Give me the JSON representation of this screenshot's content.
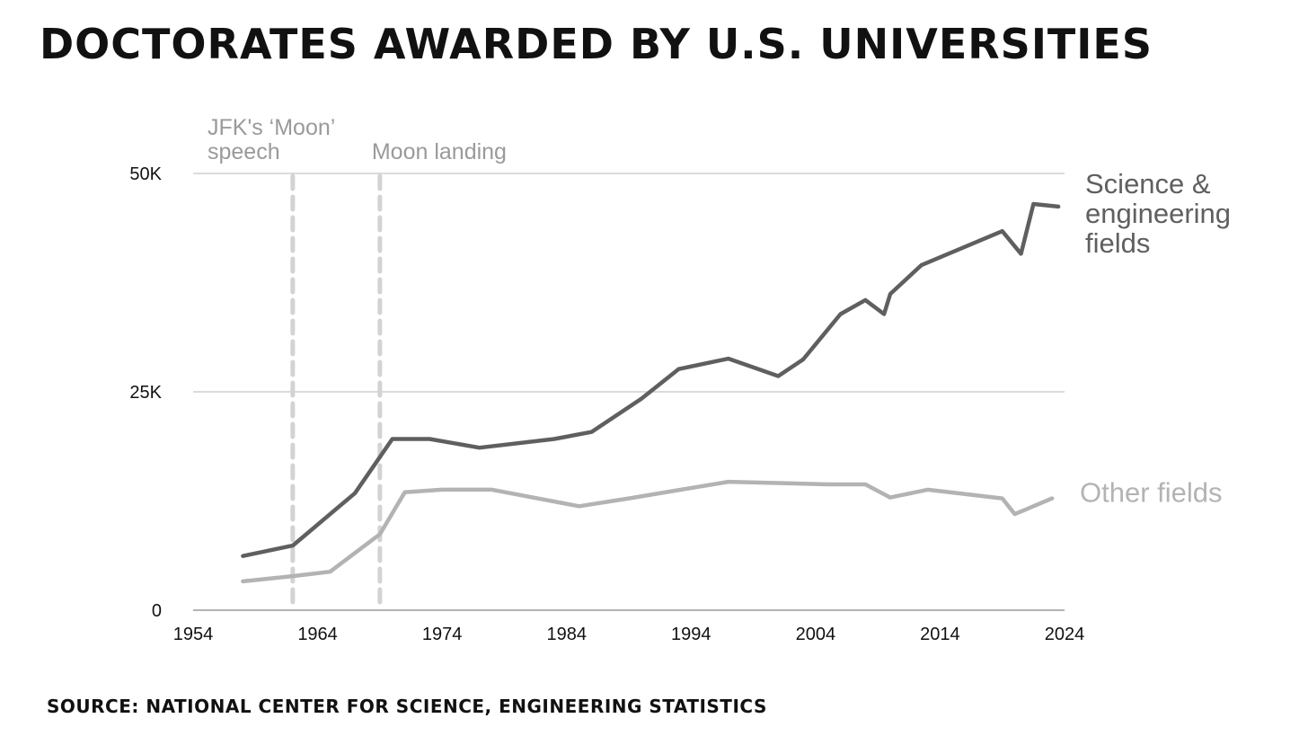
{
  "title": "DOCTORATES AWARDED BY U.S. UNIVERSITIES",
  "source": "SOURCE: NATIONAL CENTER FOR SCIENCE, ENGINEERING STATISTICS",
  "chart_data": {
    "type": "line",
    "title": "DOCTORATES AWARDED BY U.S. UNIVERSITIES",
    "xlabel": "",
    "ylabel": "",
    "xlim": [
      1954,
      2024
    ],
    "ylim": [
      0,
      50000
    ],
    "grid": true,
    "x_ticks": [
      {
        "value": 1954,
        "label": "1954"
      },
      {
        "value": 1964,
        "label": "1964"
      },
      {
        "value": 1974,
        "label": "1974"
      },
      {
        "value": 1984,
        "label": "1984"
      },
      {
        "value": 1994,
        "label": "1994"
      },
      {
        "value": 2004,
        "label": "2004"
      },
      {
        "value": 2014,
        "label": "2014"
      },
      {
        "value": 2024,
        "label": "2024"
      }
    ],
    "y_ticks": [
      {
        "value": 0,
        "label": "0"
      },
      {
        "value": 25000,
        "label": "25K"
      },
      {
        "value": 50000,
        "label": "50K"
      }
    ],
    "series": [
      {
        "name": "Science & engineering fields",
        "label_lines": [
          "Science &",
          "engineering",
          "fields"
        ],
        "color": "#5f5f5f",
        "points": [
          [
            1958,
            6200
          ],
          [
            1962,
            7400
          ],
          [
            1967,
            13400
          ],
          [
            1970,
            19600
          ],
          [
            1973,
            19600
          ],
          [
            1977,
            18600
          ],
          [
            1983,
            19600
          ],
          [
            1986,
            20400
          ],
          [
            1990,
            24200
          ],
          [
            1993,
            27600
          ],
          [
            1997,
            28800
          ],
          [
            2001,
            26800
          ],
          [
            2003,
            28700
          ],
          [
            2006,
            33900
          ],
          [
            2008,
            35500
          ],
          [
            2009.5,
            33900
          ],
          [
            2010,
            36200
          ],
          [
            2012.5,
            39500
          ],
          [
            2019,
            43400
          ],
          [
            2020.5,
            40800
          ],
          [
            2021.5,
            46500
          ],
          [
            2023.5,
            46200
          ]
        ]
      },
      {
        "name": "Other fields",
        "label_lines": [
          "Other fields"
        ],
        "color": "#b3b3b3",
        "points": [
          [
            1958,
            3300
          ],
          [
            1962,
            3900
          ],
          [
            1965,
            4400
          ],
          [
            1969,
            8700
          ],
          [
            1971,
            13500
          ],
          [
            1974,
            13800
          ],
          [
            1978,
            13800
          ],
          [
            1985,
            11900
          ],
          [
            1989,
            12800
          ],
          [
            1997,
            14700
          ],
          [
            2005,
            14400
          ],
          [
            2008,
            14400
          ],
          [
            2010,
            12900
          ],
          [
            2013,
            13800
          ],
          [
            2019,
            12800
          ],
          [
            2020,
            11000
          ],
          [
            2023,
            12800
          ]
        ]
      }
    ],
    "annotations": [
      {
        "x": 1962,
        "label_lines": [
          "JFK's ‘Moon’",
          "speech"
        ],
        "color": "#d3d3d3"
      },
      {
        "x": 1969,
        "label_lines": [
          "Moon landing"
        ],
        "color": "#d3d3d3"
      }
    ]
  }
}
